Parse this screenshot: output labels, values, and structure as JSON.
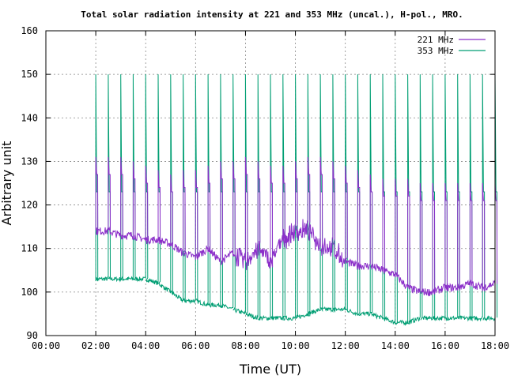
{
  "chart_data": {
    "type": "line",
    "title": "Total solar radiation intensity at 221 and 353 MHz (uncal.), H-pol., MRO.",
    "xlabel": "Time (UT)",
    "ylabel": "Arbitrary unit",
    "xlim": [
      0,
      18
    ],
    "ylim": [
      90,
      160
    ],
    "x_tick_values": [
      0,
      2,
      4,
      6,
      8,
      10,
      12,
      14,
      16,
      18
    ],
    "x_tick_labels": [
      "00:00",
      "02:00",
      "04:00",
      "06:00",
      "08:00",
      "10:00",
      "12:00",
      "14:00",
      "16:00",
      "18:00"
    ],
    "y_ticks": [
      90,
      100,
      110,
      120,
      130,
      140,
      150,
      160
    ],
    "grid": true,
    "legend_position": "top-right",
    "colors": {
      "221 MHz": "#8b2fc9",
      "353 MHz": "#009e73"
    },
    "series": [
      {
        "name": "221 MHz",
        "x": [
          2.0,
          2.5,
          3.0,
          3.5,
          4.0,
          4.5,
          5.0,
          5.5,
          6.0,
          6.5,
          7.0,
          7.5,
          8.0,
          8.5,
          9.0,
          9.5,
          10.0,
          10.5,
          11.0,
          11.5,
          12.0,
          12.5,
          13.0,
          13.5,
          14.0,
          14.5,
          15.0,
          15.5,
          16.0,
          16.5,
          17.0,
          17.5,
          18.0
        ],
        "values": [
          114,
          114,
          113,
          113,
          112,
          112,
          111,
          109,
          108,
          110,
          107,
          109,
          107,
          110,
          107,
          112,
          114,
          114,
          111,
          110,
          107,
          106,
          106,
          105,
          104,
          101,
          100,
          100,
          101,
          101,
          102,
          101,
          102
        ],
        "spike_peaks": [
          131,
          131,
          131,
          130,
          129,
          128,
          127,
          128,
          128,
          129,
          130,
          130,
          131,
          130,
          129,
          129,
          130,
          131,
          131,
          130,
          129,
          128,
          127,
          126,
          126,
          126,
          125,
          125,
          125,
          125,
          125,
          125,
          125
        ]
      },
      {
        "name": "353 MHz",
        "x": [
          2.0,
          2.5,
          3.0,
          3.5,
          4.0,
          4.5,
          5.0,
          5.5,
          6.0,
          6.5,
          7.0,
          7.5,
          8.0,
          8.5,
          9.0,
          9.5,
          10.0,
          10.5,
          11.0,
          11.5,
          12.0,
          12.5,
          13.0,
          13.5,
          14.0,
          14.5,
          15.0,
          15.5,
          16.0,
          16.5,
          17.0,
          17.5,
          18.0
        ],
        "values": [
          103,
          103,
          103,
          103,
          103,
          102,
          100,
          98,
          98,
          97,
          97,
          96,
          95,
          94,
          94,
          94,
          94,
          95,
          96,
          96,
          96,
          95,
          95,
          94,
          93,
          93,
          94,
          94,
          94,
          94,
          94,
          94,
          94
        ],
        "spike_peaks": [
          150,
          150,
          150,
          150,
          150,
          150,
          150,
          150,
          150,
          150,
          150,
          150,
          150,
          150,
          150,
          150,
          150,
          150,
          150,
          150,
          150,
          150,
          150,
          150,
          150,
          150,
          150,
          150,
          150,
          150,
          150,
          150,
          150
        ],
        "plateau_level": 123
      }
    ]
  }
}
